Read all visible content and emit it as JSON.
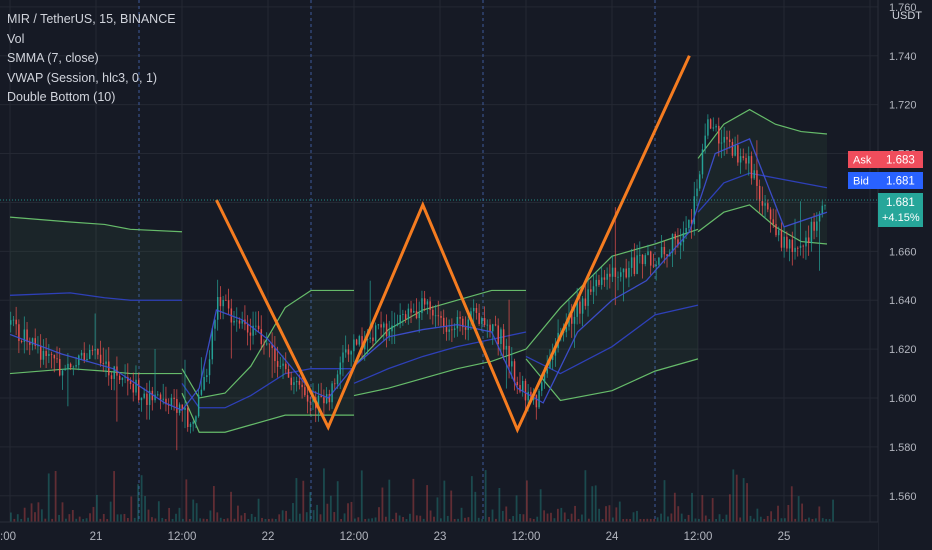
{
  "legend": {
    "symbol": "MIR / TetherUS, 15, BINANCE",
    "indicators": [
      "Vol",
      "SMMA (7, close)",
      "VWAP (Session, hlc3, 0, 1)",
      "Double Bottom (10)"
    ]
  },
  "price_axis": {
    "unit": "USDT",
    "ticks": [
      "1.760",
      "1.740",
      "1.720",
      "1.700",
      "1.680",
      "1.660",
      "1.640",
      "1.620",
      "1.600",
      "1.580",
      "1.560"
    ]
  },
  "badges": {
    "ask_label": "Ask",
    "ask_value": "1.683",
    "bid_label": "Bid",
    "bid_value": "1.681",
    "last_value": "1.681",
    "last_change": "+4.15%"
  },
  "time_axis": {
    "ticks": [
      ":00",
      "21",
      "12:00",
      "22",
      "12:00",
      "23",
      "12:00",
      "24",
      "12:00",
      "25"
    ]
  },
  "colors": {
    "background": "#161a25",
    "pattern": "#f57c20",
    "smma": "#3f51d8",
    "vwap_band": "#66bb6a",
    "ask": "#f04d5c",
    "bid": "#2962ff",
    "last": "#26a69a",
    "candle_up": "#26a69a",
    "candle_down": "#ef5350"
  },
  "chart_data": {
    "type": "line",
    "title": "MIR / TetherUS, 15, BINANCE",
    "y_range": [
      1.555,
      1.762
    ],
    "x_ticks": [
      ":00",
      "21",
      "12:00",
      "22",
      "12:00",
      "23",
      "12:00",
      "24",
      "12:00",
      "25"
    ],
    "pattern": {
      "name": "Double Bottom (10)",
      "points": [
        [
          1.2,
          1.681
        ],
        [
          1.85,
          1.588
        ],
        [
          2.4,
          1.679
        ],
        [
          2.95,
          1.587
        ],
        [
          3.95,
          1.74
        ]
      ]
    },
    "sessions": [
      {
        "x": [
          0.0,
          0.35,
          0.55,
          0.7,
          1.0
        ],
        "vwap": [
          1.642,
          1.643,
          1.641,
          1.64,
          1.64
        ],
        "upper": [
          1.674,
          1.672,
          1.671,
          1.669,
          1.668
        ],
        "lower": [
          1.61,
          1.612,
          1.611,
          1.61,
          1.61
        ]
      },
      {
        "x": [
          1.0,
          1.1,
          1.25,
          1.4,
          1.6,
          1.75,
          2.0
        ],
        "vwap": [
          1.606,
          1.596,
          1.596,
          1.601,
          1.61,
          1.612,
          1.612
        ],
        "upper": [
          1.612,
          1.6,
          1.602,
          1.613,
          1.637,
          1.644,
          1.644
        ],
        "lower": [
          1.602,
          1.586,
          1.586,
          1.589,
          1.593,
          1.593,
          1.593
        ]
      },
      {
        "x": [
          2.0,
          2.2,
          2.4,
          2.6,
          2.8,
          3.0
        ],
        "vwap": [
          1.606,
          1.612,
          1.617,
          1.621,
          1.624,
          1.627
        ],
        "upper": [
          1.613,
          1.628,
          1.636,
          1.64,
          1.644,
          1.644
        ],
        "lower": [
          1.601,
          1.604,
          1.608,
          1.612,
          1.615,
          1.62
        ]
      },
      {
        "x": [
          3.0,
          3.2,
          3.5,
          3.75,
          4.0
        ],
        "vwap": [
          1.617,
          1.61,
          1.621,
          1.634,
          1.638
        ],
        "upper": [
          1.62,
          1.637,
          1.658,
          1.663,
          1.669
        ],
        "lower": [
          1.616,
          1.599,
          1.603,
          1.611,
          1.616
        ]
      },
      {
        "x": [
          4.0,
          4.15,
          4.3,
          4.45,
          4.6,
          4.75
        ],
        "vwap": [
          1.676,
          1.688,
          1.692,
          1.69,
          1.688,
          1.686
        ],
        "upper": [
          1.698,
          1.712,
          1.718,
          1.712,
          1.709,
          1.708
        ],
        "lower": [
          1.668,
          1.676,
          1.679,
          1.67,
          1.664,
          1.663
        ]
      }
    ],
    "smma": {
      "x": [
        0.0,
        0.3,
        0.6,
        0.9,
        1.0,
        1.1,
        1.2,
        1.35,
        1.5,
        1.75,
        1.85,
        2.0,
        2.2,
        2.4,
        2.6,
        2.8,
        2.95,
        3.1,
        3.3,
        3.5,
        3.7,
        3.95,
        4.1,
        4.3,
        4.5,
        4.75
      ],
      "y": [
        1.626,
        1.618,
        1.612,
        1.598,
        1.595,
        1.604,
        1.636,
        1.632,
        1.624,
        1.603,
        1.6,
        1.613,
        1.625,
        1.628,
        1.63,
        1.627,
        1.604,
        1.598,
        1.627,
        1.64,
        1.648,
        1.668,
        1.7,
        1.706,
        1.67,
        1.676
      ]
    },
    "price": {
      "x": [
        0.0,
        0.15,
        0.3,
        0.45,
        0.6,
        0.8,
        0.95,
        1.05,
        1.15,
        1.2,
        1.3,
        1.45,
        1.6,
        1.75,
        1.85,
        1.95,
        2.1,
        2.25,
        2.4,
        2.55,
        2.7,
        2.85,
        2.95,
        3.05,
        3.2,
        3.35,
        3.5,
        3.65,
        3.8,
        3.95,
        4.05,
        4.15,
        4.3,
        4.45,
        4.6,
        4.75
      ],
      "y": [
        1.63,
        1.62,
        1.612,
        1.62,
        1.61,
        1.6,
        1.596,
        1.59,
        1.61,
        1.644,
        1.63,
        1.625,
        1.61,
        1.598,
        1.6,
        1.618,
        1.626,
        1.63,
        1.638,
        1.628,
        1.634,
        1.625,
        1.605,
        1.598,
        1.628,
        1.642,
        1.65,
        1.655,
        1.66,
        1.67,
        1.712,
        1.705,
        1.695,
        1.665,
        1.662,
        1.681
      ]
    },
    "last_price": 1.681,
    "ask": 1.683,
    "bid": 1.681,
    "session_breaks": [
      0.75,
      1.75,
      2.75,
      3.75
    ],
    "grid": true,
    "volume_bars": 240
  }
}
